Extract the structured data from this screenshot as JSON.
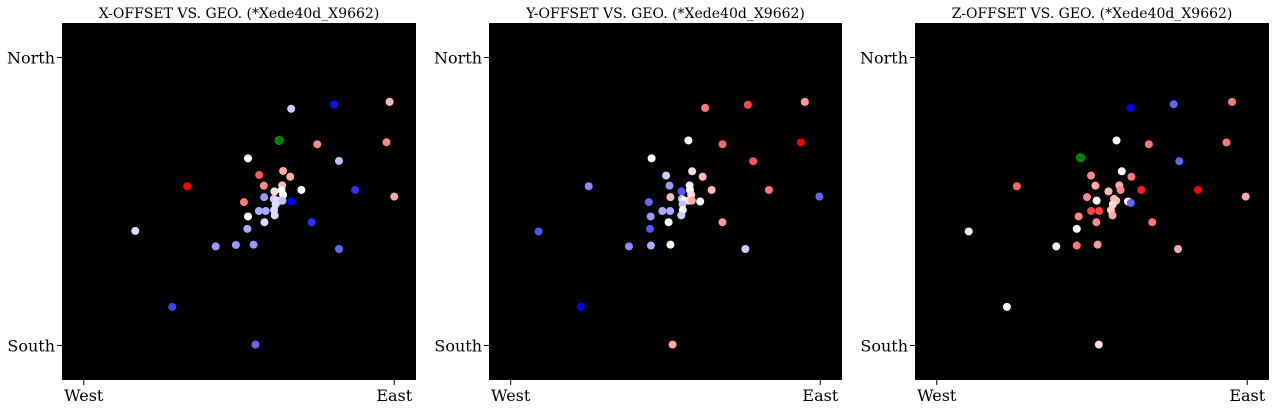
{
  "figure": {
    "background": "#ffffff",
    "plot_bg": "#000000",
    "highlight_color": "#008000"
  },
  "chart_data": [
    {
      "type": "scatter",
      "title": "X-OFFSET VS. GEO. (*Xede40d_X9662)",
      "xlabel": "",
      "ylabel": "",
      "xlim": [
        -0.07,
        1.07
      ],
      "ylim": [
        -0.12,
        1.12
      ],
      "xticks": [
        {
          "value": 0,
          "label": "West"
        },
        {
          "value": 1,
          "label": "East"
        }
      ],
      "yticks": [
        {
          "value": 1,
          "label": "North"
        },
        {
          "value": 0,
          "label": "South"
        }
      ],
      "grid": false,
      "points": [
        {
          "x": 0.985,
          "y": 0.846,
          "c": "#ffbbbb"
        },
        {
          "x": 0.806,
          "y": 0.837,
          "c": "#1010ff"
        },
        {
          "x": 0.668,
          "y": 0.822,
          "c": "#ccccff"
        },
        {
          "x": 0.629,
          "y": 0.712,
          "c": "#008000"
        },
        {
          "x": 0.752,
          "y": 0.699,
          "c": "#ff8888"
        },
        {
          "x": 0.975,
          "y": 0.706,
          "c": "#ff8888"
        },
        {
          "x": 0.529,
          "y": 0.65,
          "c": "#ffffff"
        },
        {
          "x": 0.822,
          "y": 0.641,
          "c": "#c0c0ff"
        },
        {
          "x": 0.642,
          "y": 0.606,
          "c": "#ffaaaa"
        },
        {
          "x": 0.565,
          "y": 0.592,
          "c": "#ff5555"
        },
        {
          "x": 0.665,
          "y": 0.586,
          "c": "#ffaaaa"
        },
        {
          "x": 0.333,
          "y": 0.553,
          "c": "#ff0000"
        },
        {
          "x": 0.58,
          "y": 0.555,
          "c": "#ff8888"
        },
        {
          "x": 0.639,
          "y": 0.556,
          "c": "#ffbbbb"
        },
        {
          "x": 0.874,
          "y": 0.54,
          "c": "#3030ff"
        },
        {
          "x": 0.701,
          "y": 0.54,
          "c": "#ffffff"
        },
        {
          "x": 0.614,
          "y": 0.535,
          "c": "#ffdddd"
        },
        {
          "x": 0.637,
          "y": 0.539,
          "c": "#ffffff"
        },
        {
          "x": 0.642,
          "y": 0.523,
          "c": "#ffffff"
        },
        {
          "x": 0.581,
          "y": 0.515,
          "c": "#9999ff"
        },
        {
          "x": 0.612,
          "y": 0.509,
          "c": "#ccccff"
        },
        {
          "x": 0.622,
          "y": 0.503,
          "c": "#ddddff"
        },
        {
          "x": 0.635,
          "y": 0.503,
          "c": "#ddddff"
        },
        {
          "x": 0.64,
          "y": 0.503,
          "c": "#c0c0ff"
        },
        {
          "x": 0.668,
          "y": 0.5,
          "c": "#0000ff"
        },
        {
          "x": 1.0,
          "y": 0.517,
          "c": "#ffaaaa"
        },
        {
          "x": 0.516,
          "y": 0.498,
          "c": "#ff7777"
        },
        {
          "x": 0.618,
          "y": 0.49,
          "c": "#ddddff"
        },
        {
          "x": 0.613,
          "y": 0.47,
          "c": "#ddddff"
        },
        {
          "x": 0.564,
          "y": 0.467,
          "c": "#aaaaff"
        },
        {
          "x": 0.586,
          "y": 0.467,
          "c": "#aaaaff"
        },
        {
          "x": 0.529,
          "y": 0.448,
          "c": "#ffffff"
        },
        {
          "x": 0.615,
          "y": 0.452,
          "c": "#ddddff"
        },
        {
          "x": 0.734,
          "y": 0.428,
          "c": "#3030ff"
        },
        {
          "x": 0.582,
          "y": 0.428,
          "c": "#ddddff"
        },
        {
          "x": 0.527,
          "y": 0.405,
          "c": "#aaaaff"
        },
        {
          "x": 0.166,
          "y": 0.398,
          "c": "#ddddff"
        },
        {
          "x": 0.425,
          "y": 0.344,
          "c": "#9999ff"
        },
        {
          "x": 0.49,
          "y": 0.349,
          "c": "#9999ff"
        },
        {
          "x": 0.547,
          "y": 0.35,
          "c": "#9999ff"
        },
        {
          "x": 0.822,
          "y": 0.335,
          "c": "#6666ff"
        },
        {
          "x": 0.285,
          "y": 0.134,
          "c": "#4040ff"
        },
        {
          "x": 0.553,
          "y": 0.003,
          "c": "#6666ff"
        }
      ]
    },
    {
      "type": "scatter",
      "title": "Y-OFFSET VS. GEO. (*Xede40d_X9662)",
      "xlabel": "",
      "ylabel": "",
      "xlim": [
        -0.07,
        1.07
      ],
      "ylim": [
        -0.12,
        1.12
      ],
      "xticks": [
        {
          "value": 0,
          "label": "West"
        },
        {
          "value": 1,
          "label": "East"
        }
      ],
      "yticks": [
        {
          "value": 1,
          "label": "North"
        },
        {
          "value": 0,
          "label": "South"
        }
      ],
      "grid": false,
      "points": [
        {
          "x": 0.95,
          "y": 0.846,
          "c": "#ff9999"
        },
        {
          "x": 0.766,
          "y": 0.836,
          "c": "#ff4444"
        },
        {
          "x": 0.628,
          "y": 0.825,
          "c": "#ff7777"
        },
        {
          "x": 0.574,
          "y": 0.712,
          "c": "#ffffff"
        },
        {
          "x": 0.684,
          "y": 0.699,
          "c": "#ff6666"
        },
        {
          "x": 0.937,
          "y": 0.705,
          "c": "#ff0000"
        },
        {
          "x": 0.455,
          "y": 0.65,
          "c": "#ffffff"
        },
        {
          "x": 0.783,
          "y": 0.64,
          "c": "#ff5555"
        },
        {
          "x": 0.586,
          "y": 0.605,
          "c": "#ffdddd"
        },
        {
          "x": 0.502,
          "y": 0.59,
          "c": "#ccccff"
        },
        {
          "x": 0.62,
          "y": 0.586,
          "c": "#ffbbbb"
        },
        {
          "x": 0.252,
          "y": 0.553,
          "c": "#8888ff"
        },
        {
          "x": 0.513,
          "y": 0.555,
          "c": "#9999ff"
        },
        {
          "x": 0.578,
          "y": 0.556,
          "c": "#ffeeee"
        },
        {
          "x": 0.834,
          "y": 0.54,
          "c": "#ff7777"
        },
        {
          "x": 0.649,
          "y": 0.54,
          "c": "#ffbbbb"
        },
        {
          "x": 0.552,
          "y": 0.535,
          "c": "#5555ff"
        },
        {
          "x": 0.579,
          "y": 0.54,
          "c": "#ffffff"
        },
        {
          "x": 0.583,
          "y": 0.523,
          "c": "#ffdddd"
        },
        {
          "x": 0.516,
          "y": 0.515,
          "c": "#ffbbbb"
        },
        {
          "x": 0.553,
          "y": 0.509,
          "c": "#c0c0ff"
        },
        {
          "x": 0.561,
          "y": 0.503,
          "c": "#ffffff"
        },
        {
          "x": 0.575,
          "y": 0.503,
          "c": "#ffdddd"
        },
        {
          "x": 0.585,
          "y": 0.503,
          "c": "#ffaaaa"
        },
        {
          "x": 0.612,
          "y": 0.5,
          "c": "#ffffff"
        },
        {
          "x": 0.997,
          "y": 0.517,
          "c": "#6666ff"
        },
        {
          "x": 0.446,
          "y": 0.498,
          "c": "#6666ff"
        },
        {
          "x": 0.555,
          "y": 0.49,
          "c": "#c0c0ff"
        },
        {
          "x": 0.556,
          "y": 0.47,
          "c": "#ffffff"
        },
        {
          "x": 0.49,
          "y": 0.467,
          "c": "#aaaaff"
        },
        {
          "x": 0.515,
          "y": 0.467,
          "c": "#aaaaff"
        },
        {
          "x": 0.452,
          "y": 0.448,
          "c": "#9999ff"
        },
        {
          "x": 0.551,
          "y": 0.452,
          "c": "#ccccff"
        },
        {
          "x": 0.684,
          "y": 0.428,
          "c": "#ff9999"
        },
        {
          "x": 0.51,
          "y": 0.428,
          "c": "#ffffff"
        },
        {
          "x": 0.45,
          "y": 0.405,
          "c": "#5555ff"
        },
        {
          "x": 0.09,
          "y": 0.396,
          "c": "#5555ff"
        },
        {
          "x": 0.382,
          "y": 0.344,
          "c": "#8888ff"
        },
        {
          "x": 0.453,
          "y": 0.347,
          "c": "#aaaaff"
        },
        {
          "x": 0.516,
          "y": 0.35,
          "c": "#ffffff"
        },
        {
          "x": 0.758,
          "y": 0.335,
          "c": "#ccccff"
        },
        {
          "x": 0.226,
          "y": 0.134,
          "c": "#0000ff"
        },
        {
          "x": 0.523,
          "y": 0.003,
          "c": "#ffaaaa"
        }
      ]
    },
    {
      "type": "scatter",
      "title": "Z-OFFSET VS. GEO. (*Xede40d_X9662)",
      "xlabel": "",
      "ylabel": "",
      "xlim": [
        -0.07,
        1.07
      ],
      "ylim": [
        -0.12,
        1.12
      ],
      "xticks": [
        {
          "value": 0,
          "label": "West"
        },
        {
          "value": 1,
          "label": "East"
        }
      ],
      "yticks": [
        {
          "value": 1,
          "label": "North"
        },
        {
          "value": 0,
          "label": "South"
        }
      ],
      "grid": false,
      "points": [
        {
          "x": 0.951,
          "y": 0.846,
          "c": "#ff7777"
        },
        {
          "x": 0.763,
          "y": 0.838,
          "c": "#6666ff"
        },
        {
          "x": 0.624,
          "y": 0.825,
          "c": "#0000ff"
        },
        {
          "x": 0.579,
          "y": 0.712,
          "c": "#ffffff"
        },
        {
          "x": 0.683,
          "y": 0.699,
          "c": "#ff7777"
        },
        {
          "x": 0.933,
          "y": 0.705,
          "c": "#ff7777"
        },
        {
          "x": 0.463,
          "y": 0.652,
          "c": "#008000"
        },
        {
          "x": 0.781,
          "y": 0.64,
          "c": "#6666ff"
        },
        {
          "x": 0.596,
          "y": 0.605,
          "c": "#ffffff"
        },
        {
          "x": 0.497,
          "y": 0.59,
          "c": "#ff8888"
        },
        {
          "x": 0.627,
          "y": 0.586,
          "c": "#ff7777"
        },
        {
          "x": 0.258,
          "y": 0.553,
          "c": "#ff6666"
        },
        {
          "x": 0.511,
          "y": 0.555,
          "c": "#ffaaaa"
        },
        {
          "x": 0.588,
          "y": 0.556,
          "c": "#ffaaaa"
        },
        {
          "x": 0.841,
          "y": 0.54,
          "c": "#ff0000"
        },
        {
          "x": 0.659,
          "y": 0.54,
          "c": "#ff2020"
        },
        {
          "x": 0.553,
          "y": 0.535,
          "c": "#ffbbbb"
        },
        {
          "x": 0.592,
          "y": 0.54,
          "c": "#ff8888"
        },
        {
          "x": 0.995,
          "y": 0.517,
          "c": "#ffaaaa"
        },
        {
          "x": 0.484,
          "y": 0.515,
          "c": "#ff8888"
        },
        {
          "x": 0.571,
          "y": 0.509,
          "c": "#ffbbbb"
        },
        {
          "x": 0.578,
          "y": 0.503,
          "c": "#ffbbbb"
        },
        {
          "x": 0.515,
          "y": 0.503,
          "c": "#ffffff"
        },
        {
          "x": 0.616,
          "y": 0.5,
          "c": "#ffffff"
        },
        {
          "x": 0.625,
          "y": 0.495,
          "c": "#6666ff"
        },
        {
          "x": 0.567,
          "y": 0.49,
          "c": "#ffdddd"
        },
        {
          "x": 0.561,
          "y": 0.47,
          "c": "#ffcccc"
        },
        {
          "x": 0.497,
          "y": 0.467,
          "c": "#ff4444"
        },
        {
          "x": 0.523,
          "y": 0.467,
          "c": "#ff4444"
        },
        {
          "x": 0.457,
          "y": 0.448,
          "c": "#ff8888"
        },
        {
          "x": 0.566,
          "y": 0.452,
          "c": "#ffaaaa"
        },
        {
          "x": 0.694,
          "y": 0.428,
          "c": "#ff7777"
        },
        {
          "x": 0.514,
          "y": 0.428,
          "c": "#ff8888"
        },
        {
          "x": 0.451,
          "y": 0.405,
          "c": "#ffffff"
        },
        {
          "x": 0.103,
          "y": 0.396,
          "c": "#ffeeee"
        },
        {
          "x": 0.385,
          "y": 0.344,
          "c": "#ffeeee"
        },
        {
          "x": 0.451,
          "y": 0.347,
          "c": "#ff7777"
        },
        {
          "x": 0.518,
          "y": 0.35,
          "c": "#ff9999"
        },
        {
          "x": 0.777,
          "y": 0.335,
          "c": "#ffaaaa"
        },
        {
          "x": 0.226,
          "y": 0.134,
          "c": "#ffeeee"
        },
        {
          "x": 0.522,
          "y": 0.003,
          "c": "#ffdddd"
        }
      ]
    }
  ]
}
